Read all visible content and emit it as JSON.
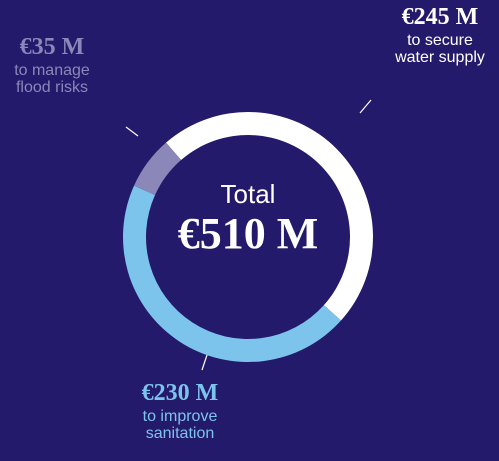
{
  "chart_data": {
    "type": "donut",
    "center_title": "Total",
    "center_value": "€510 M",
    "categories": [
      "to secure water supply",
      "to improve sanitation",
      "to manage flood risks"
    ],
    "values": [
      245,
      230,
      35
    ],
    "value_labels": [
      "€245 M",
      "€230 M",
      "€35 M"
    ],
    "colors": [
      "#ffffff",
      "#7cc4ec",
      "#8b87b8"
    ]
  }
}
